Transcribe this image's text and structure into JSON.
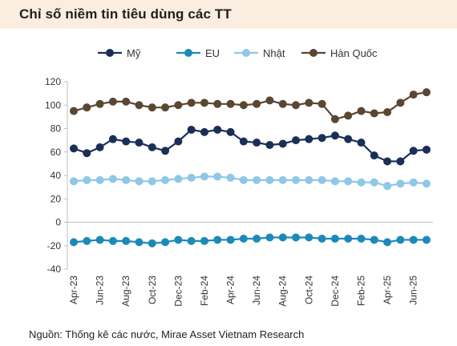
{
  "header": {
    "title": "Chỉ số niềm tin tiêu dùng các TT"
  },
  "footer": {
    "source": "Nguồn: Thống kê các nước, Mirae Asset Vietnam Research"
  },
  "chart_data": {
    "type": "line",
    "title": "Chỉ số niềm tin tiêu dùng các TT",
    "xlabel": "",
    "ylabel": "",
    "ylim": [
      -40,
      120
    ],
    "yticks": [
      120,
      100,
      80,
      60,
      40,
      20,
      0,
      -20,
      -40
    ],
    "grid": false,
    "legend": "top",
    "x": [
      "Apr-23",
      "May-23",
      "Jun-23",
      "Jul-23",
      "Aug-23",
      "Sep-23",
      "Oct-23",
      "Nov-23",
      "Dec-23",
      "Jan-24",
      "Feb-24",
      "Mar-24",
      "Apr-24",
      "May-24",
      "Jun-24",
      "Jul-24",
      "Aug-24",
      "Sep-24",
      "Oct-24",
      "Nov-24",
      "Dec-24",
      "Jan-25",
      "Feb-25",
      "Mar-25",
      "Apr-25",
      "May-25",
      "Jun-25",
      "Jul-25"
    ],
    "xtick_labels": [
      "Apr-23",
      "Jun-23",
      "Aug-23",
      "Oct-23",
      "Dec-23",
      "Feb-24",
      "Apr-24",
      "Jun-24",
      "Aug-24",
      "Oct-24",
      "Dec-24",
      "Feb-25",
      "Apr-25",
      "Jun-25"
    ],
    "series": [
      {
        "name": "Mỹ",
        "color": "#1a2f57",
        "values": [
          63,
          59,
          64,
          71,
          69,
          68,
          64,
          61,
          69,
          79,
          77,
          79,
          77,
          69,
          68,
          66,
          67,
          70,
          71,
          72,
          74,
          71,
          68,
          57,
          52,
          52,
          61,
          62
        ]
      },
      {
        "name": "EU",
        "color": "#1c8ab8",
        "values": [
          -17,
          -16,
          -15,
          -16,
          -16,
          -17,
          -18,
          -17,
          -15,
          -16,
          -16,
          -15,
          -15,
          -14,
          -14,
          -13,
          -13,
          -13,
          -13,
          -14,
          -14,
          -14,
          -14,
          -15,
          -17,
          -15,
          -15,
          -15
        ]
      },
      {
        "name": "Nhật",
        "color": "#8fc7e6",
        "values": [
          35,
          36,
          36,
          37,
          36,
          35,
          35,
          36,
          37,
          38,
          39,
          39,
          38,
          36,
          36,
          36,
          36,
          36,
          36,
          36,
          35,
          35,
          34,
          34,
          31,
          33,
          34,
          33
        ]
      },
      {
        "name": "Hàn Quốc",
        "color": "#5b4632",
        "values": [
          95,
          98,
          101,
          103,
          103,
          100,
          98,
          98,
          100,
          102,
          102,
          101,
          101,
          100,
          101,
          104,
          101,
          100,
          102,
          101,
          88,
          91,
          95,
          93,
          94,
          102,
          109,
          111
        ]
      }
    ]
  }
}
